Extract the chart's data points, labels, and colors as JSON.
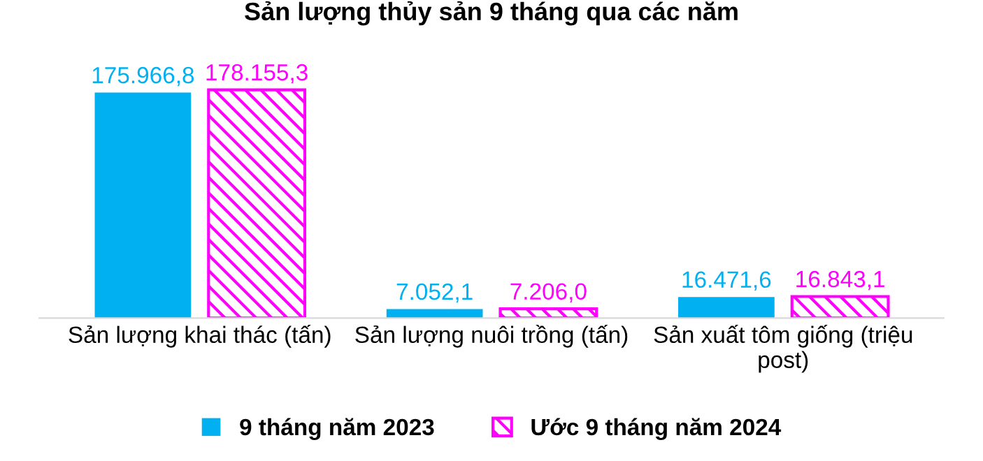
{
  "chart_data": {
    "type": "bar",
    "title": "Sản lượng thủy sản 9 tháng qua các năm",
    "categories": [
      "Sản lượng khai thác (tấn)",
      "Sản lượng nuôi trồng (tấn)",
      "Sản xuất tôm giống (triệu\npost)"
    ],
    "series": [
      {
        "name": "9 tháng năm 2023",
        "color": "#00b0f0",
        "values": [
          175966.8,
          7052.1,
          16471.6
        ],
        "value_labels": [
          "175.966,8",
          "7.052,1",
          "16.471,6"
        ]
      },
      {
        "name": "Ước 9 tháng năm 2024",
        "color": "#ff00ff",
        "values": [
          178155.3,
          7206.0,
          16843.1
        ],
        "value_labels": [
          "178.155,3",
          "7.206,0",
          "16.843,1"
        ]
      }
    ],
    "legend": "bottom",
    "grid": false
  }
}
